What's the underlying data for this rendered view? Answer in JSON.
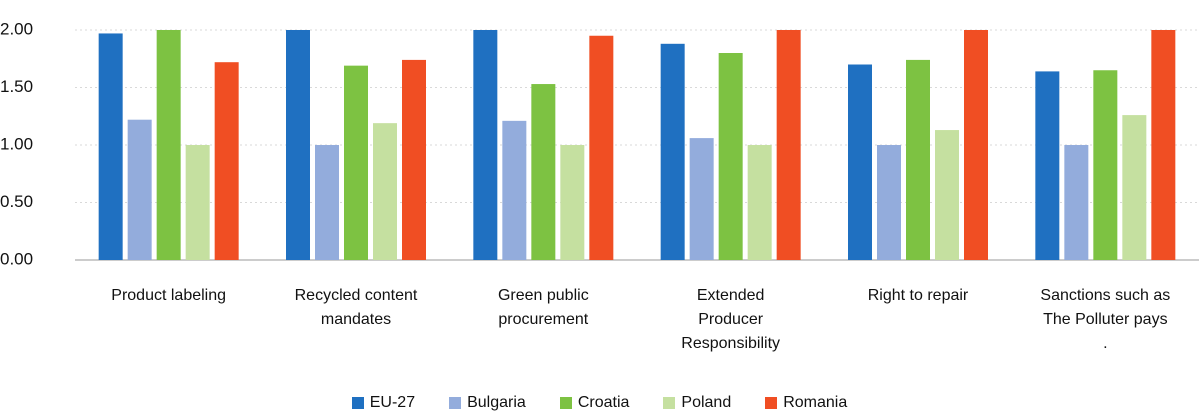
{
  "chart_data": {
    "type": "bar",
    "categories": [
      "Product labeling",
      "Recycled content\nmandates",
      "Green public\nprocurement",
      "Extended\nProducer\nResponsibility",
      "Right to repair",
      "Sanctions such as\nThe Polluter pays\n."
    ],
    "series": [
      {
        "name": "EU-27",
        "color": "#1f70c1",
        "values": [
          1.97,
          2.0,
          2.0,
          1.88,
          1.7,
          1.64
        ]
      },
      {
        "name": "Bulgaria",
        "color": "#93acdc",
        "values": [
          1.22,
          1.0,
          1.21,
          1.06,
          1.0,
          1.0
        ]
      },
      {
        "name": "Croatia",
        "color": "#7dc242",
        "values": [
          2.0,
          1.69,
          1.53,
          1.8,
          1.74,
          1.65
        ]
      },
      {
        "name": "Poland",
        "color": "#c5e0a0",
        "values": [
          1.0,
          1.19,
          1.0,
          1.0,
          1.13,
          1.26
        ]
      },
      {
        "name": "Romania",
        "color": "#f04e23",
        "values": [
          1.72,
          1.74,
          1.95,
          2.0,
          2.0,
          2.0
        ]
      }
    ],
    "ylim": [
      0,
      2
    ],
    "yticks": [
      {
        "value": 0,
        "label": "0.00"
      },
      {
        "value": 0.5,
        "label": "0.50"
      },
      {
        "value": 1,
        "label": "1.00"
      },
      {
        "value": 1.5,
        "label": "1.50"
      },
      {
        "value": 2,
        "label": "2.00"
      }
    ],
    "grid": true,
    "legend": "bottom"
  }
}
